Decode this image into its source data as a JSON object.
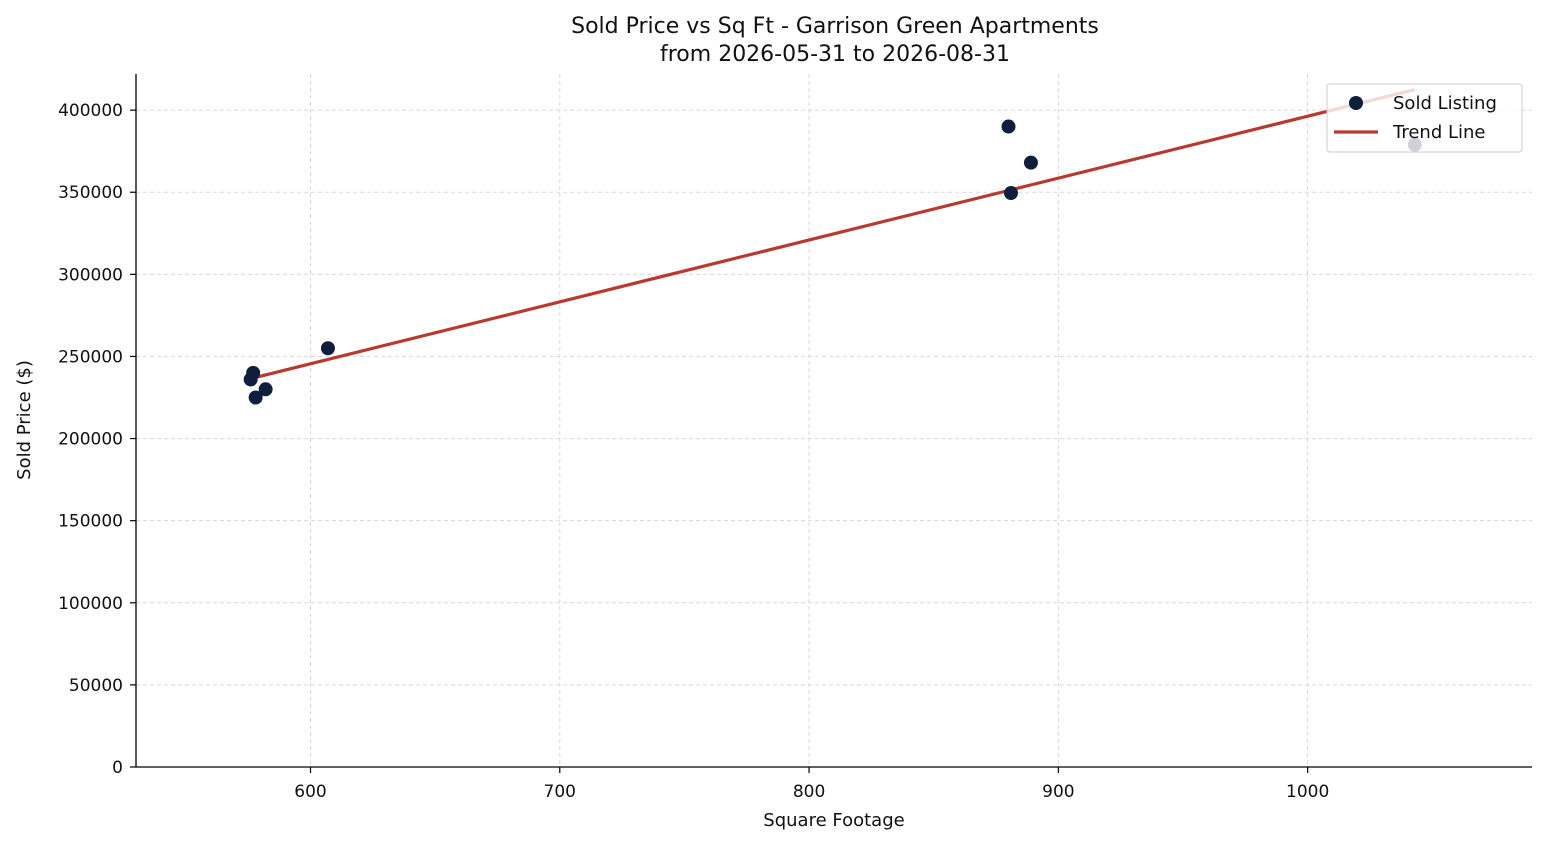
{
  "chart_data": {
    "type": "scatter",
    "title": "Sold Price vs Sq Ft - Garrison Green Apartments",
    "subtitle": "from 2026-05-31 to 2026-08-31",
    "xlabel": "Square Footage",
    "ylabel": "Sold Price ($)",
    "xlim": [
      530,
      1090
    ],
    "ylim": [
      0,
      422000
    ],
    "x_ticks": [
      600,
      700,
      800,
      900,
      1000
    ],
    "y_ticks": [
      0,
      50000,
      100000,
      150000,
      200000,
      250000,
      300000,
      350000,
      400000
    ],
    "grid": true,
    "legend_position": "top-right",
    "series": [
      {
        "name": "Sold Listing",
        "kind": "scatter",
        "color": "#0d1f3c",
        "points": [
          {
            "x": 577,
            "y": 240000
          },
          {
            "x": 576,
            "y": 236000
          },
          {
            "x": 578,
            "y": 225000
          },
          {
            "x": 582,
            "y": 230000
          },
          {
            "x": 607,
            "y": 255000
          },
          {
            "x": 880,
            "y": 390000
          },
          {
            "x": 889,
            "y": 368000
          },
          {
            "x": 881,
            "y": 349500
          },
          {
            "x": 1043,
            "y": 379000
          }
        ]
      },
      {
        "name": "Trend Line",
        "kind": "line",
        "color": "#b83a2e",
        "points": [
          {
            "x": 576,
            "y": 236500
          },
          {
            "x": 1043,
            "y": 412500
          }
        ]
      }
    ]
  }
}
